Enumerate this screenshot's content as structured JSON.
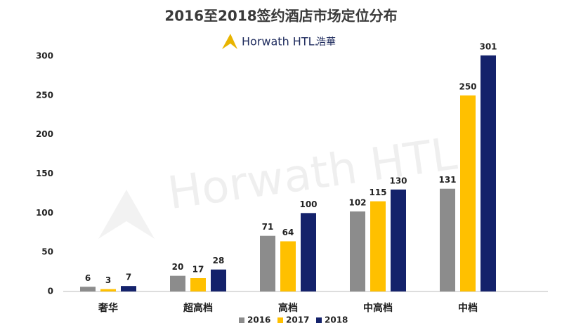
{
  "chart_data": {
    "type": "bar",
    "title": "2016至2018签约酒店市场定位分布",
    "logo": "Horwath HTL.",
    "logo_cn": "浩華",
    "watermark": "Horwath HTL",
    "categories": [
      "奢华",
      "超高档",
      "高档",
      "中高档",
      "中档"
    ],
    "series": [
      {
        "name": "2016",
        "color": "#8c8c8c",
        "values": [
          6,
          20,
          71,
          102,
          131
        ]
      },
      {
        "name": "2017",
        "color": "#ffc000",
        "values": [
          3,
          17,
          64,
          115,
          250
        ]
      },
      {
        "name": "2018",
        "color": "#14226b",
        "values": [
          7,
          28,
          100,
          130,
          301
        ]
      }
    ],
    "ylim": [
      0,
      300
    ],
    "yticks": [
      0,
      50,
      100,
      150,
      200,
      250,
      300
    ],
    "grid": false,
    "legend": "bottom"
  }
}
